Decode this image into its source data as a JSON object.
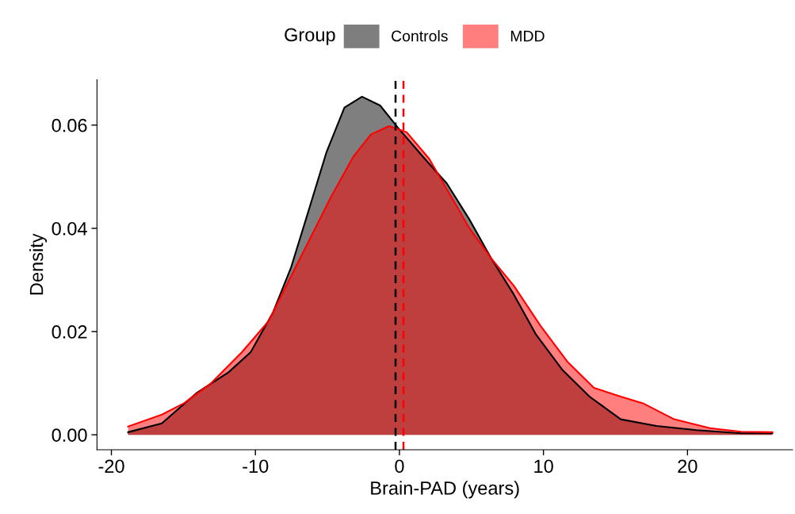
{
  "chart_data": {
    "type": "area",
    "xlabel": "Brain-PAD (years)",
    "ylabel": "Density",
    "legend_title": "Group",
    "legend": "top",
    "grid": false,
    "xlim": [
      -21,
      27.3
    ],
    "ylim": [
      -0.0029,
      0.0688
    ],
    "xticks": [
      -20,
      -10,
      0,
      10,
      20
    ],
    "yticks": [
      {
        "value": 0,
        "label": "0.00"
      },
      {
        "value": 0.02,
        "label": "0.02"
      },
      {
        "value": 0.04,
        "label": "0.04"
      },
      {
        "value": 0.06,
        "label": "0.06"
      }
    ],
    "series": [
      {
        "name": "Controls",
        "color": "#000000",
        "x": [
          -18.84,
          -16.5,
          -14.04,
          -11.87,
          -10.33,
          -8.78,
          -7.54,
          -6.3,
          -5.06,
          -3.82,
          -2.6,
          -1.34,
          -0.11,
          1.75,
          3.29,
          4.84,
          6.39,
          7.94,
          9.49,
          11.34,
          13.2,
          15.37,
          17.85,
          20.63,
          23.72,
          25.89
        ],
        "values": [
          0.0005,
          0.0022,
          0.0082,
          0.0121,
          0.016,
          0.0237,
          0.0323,
          0.0435,
          0.0548,
          0.0634,
          0.0655,
          0.0638,
          0.0595,
          0.0535,
          0.0487,
          0.0418,
          0.0341,
          0.0272,
          0.0194,
          0.0125,
          0.0074,
          0.003,
          0.0017,
          0.0009,
          0.0003,
          0.0003
        ]
      },
      {
        "name": "MDD",
        "color": "#ff0000",
        "x": [
          -18.84,
          -16.5,
          -14.96,
          -13.11,
          -10.94,
          -9.09,
          -7.85,
          -6.3,
          -4.75,
          -3.2,
          -1.97,
          -0.73,
          0.51,
          2.06,
          3.6,
          4.84,
          6.39,
          7.94,
          9.8,
          11.65,
          13.51,
          15.37,
          16.91,
          19.08,
          21.56,
          23.72,
          25.89
        ],
        "values": [
          0.0016,
          0.0039,
          0.0061,
          0.0099,
          0.016,
          0.022,
          0.0289,
          0.0375,
          0.0461,
          0.0539,
          0.0582,
          0.0598,
          0.0586,
          0.0535,
          0.0461,
          0.0401,
          0.0341,
          0.0289,
          0.0211,
          0.0142,
          0.0091,
          0.0074,
          0.0061,
          0.003,
          0.0013,
          0.0006,
          0.0005
        ]
      }
    ],
    "ref_lines": [
      {
        "axis": "x",
        "value": -0.27,
        "color": "#000000",
        "line_style": "dashed"
      },
      {
        "axis": "x",
        "value": 0.28,
        "color": "#ff0000",
        "line_style": "dashed"
      }
    ]
  }
}
